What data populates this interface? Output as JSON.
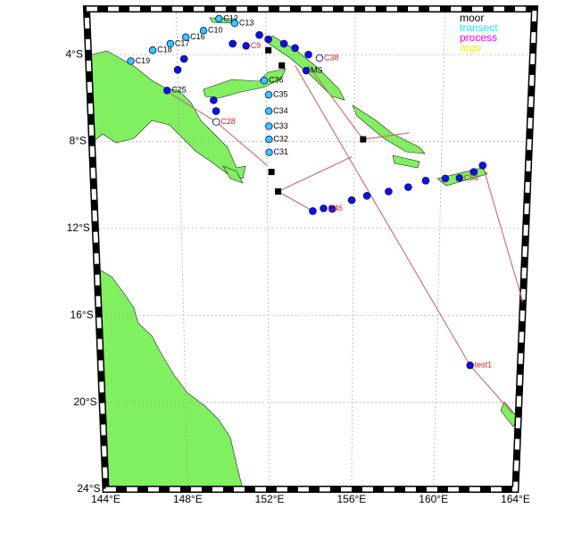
{
  "map": {
    "legend": [
      {
        "label": "moor",
        "color": "#000000"
      },
      {
        "label": "transect",
        "color": "#33e0ff"
      },
      {
        "label": "process",
        "color": "#ff00ff"
      },
      {
        "label": "argo",
        "color": "#f0f000"
      }
    ],
    "lon_range": [
      144,
      164
    ],
    "lat_range": [
      -24,
      -1.9
    ],
    "lon_ticks": [
      {
        "value": 144,
        "label": "144°E"
      },
      {
        "value": 148,
        "label": "148°E"
      },
      {
        "value": 152,
        "label": "152°E"
      },
      {
        "value": 156,
        "label": "156°E"
      },
      {
        "value": 160,
        "label": "160°E"
      },
      {
        "value": 164,
        "label": "164°E"
      }
    ],
    "lat_ticks": [
      {
        "value": -4,
        "label": "4°S"
      },
      {
        "value": -8,
        "label": "8°S"
      },
      {
        "value": -12,
        "label": "12°S"
      },
      {
        "value": -16,
        "label": "16°S"
      },
      {
        "value": -20,
        "label": "20°S"
      },
      {
        "value": -24,
        "label": "24°S"
      }
    ],
    "track": {
      "lon": [
        147.5,
        149.7,
        152.0,
        null,
        152.5,
        154.1,
        null,
        152.5,
        155.9,
        null,
        153.9,
        156.4,
        158.5,
        null,
        153.3,
        161.6,
        163.7,
        null,
        161.9,
        164.0
      ],
      "lat": [
        -5.7,
        -7.1,
        -9.1,
        null,
        -10.3,
        -11.2,
        null,
        -10.3,
        -8.7,
        null,
        -4.5,
        -7.9,
        -7.6,
        null,
        -4.5,
        -18.3,
        -20.5,
        null,
        -9.1,
        -15.4
      ]
    },
    "moorings": [
      {
        "lon": 152.1,
        "lat": -3.8
      },
      {
        "lon": 152.7,
        "lat": -4.5
      },
      {
        "lon": 152.2,
        "lat": -9.4
      },
      {
        "lon": 156.4,
        "lat": -7.9
      },
      {
        "lon": 152.5,
        "lat": -10.3
      }
    ],
    "points": [
      {
        "lon": 148.3,
        "lat": -4.2
      },
      {
        "lon": 148.0,
        "lat": -4.7
      },
      {
        "lon": 149.6,
        "lat": -6.1
      },
      {
        "lon": 149.7,
        "lat": -6.6
      },
      {
        "lon": 150.5,
        "lat": -3.5
      },
      {
        "lon": 151.7,
        "lat": -3.1
      },
      {
        "lon": 152.1,
        "lat": -3.3
      },
      {
        "lon": 152.8,
        "lat": -3.5
      },
      {
        "lon": 153.3,
        "lat": -3.7
      },
      {
        "lon": 153.9,
        "lat": -4.0
      },
      {
        "lon": 155.0,
        "lat": -11.1
      },
      {
        "lon": 154.1,
        "lat": -11.2
      },
      {
        "lon": 155.9,
        "lat": -10.7
      },
      {
        "lon": 156.6,
        "lat": -10.5
      },
      {
        "lon": 157.6,
        "lat": -10.3
      },
      {
        "lon": 158.5,
        "lat": -10.1
      },
      {
        "lon": 159.3,
        "lat": -9.8
      },
      {
        "lon": 160.2,
        "lat": -9.7
      },
      {
        "lon": 161.5,
        "lat": -9.4
      },
      {
        "lon": 161.9,
        "lat": -9.1
      }
    ],
    "stations": [
      {
        "name": "C19",
        "lon": 145.9,
        "lat": -4.3,
        "fill": "#33ccff",
        "label_color": "#000000"
      },
      {
        "name": "C18",
        "lon": 146.9,
        "lat": -3.8,
        "fill": "#33ccff",
        "label_color": "#000000"
      },
      {
        "name": "C17",
        "lon": 147.7,
        "lat": -3.5,
        "fill": "#33ccff",
        "label_color": "#000000"
      },
      {
        "name": "C16",
        "lon": 148.4,
        "lat": -3.2,
        "fill": "#33ccff",
        "label_color": "#000000"
      },
      {
        "name": "C10",
        "lon": 149.2,
        "lat": -2.9,
        "fill": "#33ccff",
        "label_color": "#000000"
      },
      {
        "name": "C12",
        "lon": 149.9,
        "lat": -2.35,
        "fill": "#33ccff",
        "label_color": "#000000"
      },
      {
        "name": "C13",
        "lon": 150.6,
        "lat": -2.56,
        "fill": "#33ccff",
        "label_color": "#000000"
      },
      {
        "name": "C9",
        "lon": 151.1,
        "lat": -3.6,
        "fill": "#1010e0",
        "label_color": "#e02020"
      },
      {
        "name": "C25",
        "lon": 147.5,
        "lat": -5.65,
        "fill": "#1010e0",
        "label_color": "#000000"
      },
      {
        "name": "C28",
        "lon": 149.7,
        "lat": -7.1,
        "fill": "#ffffff",
        "label_color": "#e02020"
      },
      {
        "name": "C36",
        "lon": 151.9,
        "lat": -5.2,
        "fill": "#33ccff",
        "label_color": "#000000"
      },
      {
        "name": "C35",
        "lon": 152.1,
        "lat": -5.85,
        "fill": "#33ccff",
        "label_color": "#000000"
      },
      {
        "name": "C34",
        "lon": 152.1,
        "lat": -6.6,
        "fill": "#33ccff",
        "label_color": "#000000"
      },
      {
        "name": "C33",
        "lon": 152.1,
        "lat": -7.3,
        "fill": "#33ccff",
        "label_color": "#000000"
      },
      {
        "name": "C32",
        "lon": 152.1,
        "lat": -7.9,
        "fill": "#33ccff",
        "label_color": "#000000"
      },
      {
        "name": "C31",
        "lon": 152.1,
        "lat": -8.5,
        "fill": "#33ccff",
        "label_color": "#000000"
      },
      {
        "name": "MS",
        "lon": 153.8,
        "lat": -4.74,
        "fill": "#1010e0",
        "label_color": "#000000"
      },
      {
        "name": "C38",
        "lon": 154.4,
        "lat": -4.16,
        "fill": "#ffffff",
        "label_color": "#e02020"
      },
      {
        "name": "C58",
        "lon": 160.85,
        "lat": -9.68,
        "fill": "#1010e0",
        "label_color": "#e02020"
      },
      {
        "name": "C46",
        "lon": 154.6,
        "lat": -11.08,
        "fill": "#1010e0",
        "label_color": "#e02020"
      },
      {
        "name": "test1",
        "lon": 161.6,
        "lat": -18.3,
        "fill": "#1010e0",
        "label_color": "#e02020"
      }
    ]
  }
}
